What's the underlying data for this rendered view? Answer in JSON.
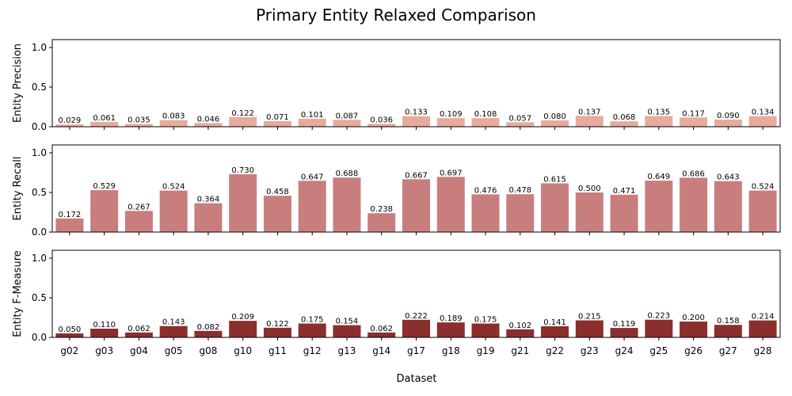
{
  "chart_data": {
    "type": "bar",
    "title": "Primary Entity Relaxed Comparison",
    "xlabel": "Dataset",
    "categories": [
      "g02",
      "g03",
      "g04",
      "g05",
      "g08",
      "g10",
      "g11",
      "g12",
      "g13",
      "g14",
      "g17",
      "g18",
      "g19",
      "g21",
      "g22",
      "g23",
      "g24",
      "g25",
      "g26",
      "g27",
      "g28"
    ],
    "ylim": [
      0,
      1.1
    ],
    "yticks": [
      "0.0",
      "0.5",
      "1.0"
    ],
    "panels": [
      {
        "ylabel": "Entity Precision",
        "color": "#e8aa9b",
        "values": [
          0.029,
          0.061,
          0.035,
          0.083,
          0.046,
          0.122,
          0.071,
          0.101,
          0.087,
          0.036,
          0.133,
          0.109,
          0.108,
          0.057,
          0.08,
          0.137,
          0.068,
          0.135,
          0.117,
          0.09,
          0.134
        ],
        "labels": [
          "0.029",
          "0.061",
          "0.035",
          "0.083",
          "0.046",
          "0.122",
          "0.071",
          "0.101",
          "0.087",
          "0.036",
          "0.133",
          "0.109",
          "0.108",
          "0.057",
          "0.080",
          "0.137",
          "0.068",
          "0.135",
          "0.117",
          "0.090",
          "0.134"
        ]
      },
      {
        "ylabel": "Entity Recall",
        "color": "#c97e7e",
        "values": [
          0.172,
          0.529,
          0.267,
          0.524,
          0.364,
          0.73,
          0.458,
          0.647,
          0.688,
          0.238,
          0.667,
          0.697,
          0.476,
          0.478,
          0.615,
          0.5,
          0.471,
          0.649,
          0.686,
          0.643,
          0.524
        ],
        "labels": [
          "0.172",
          "0.529",
          "0.267",
          "0.524",
          "0.364",
          "0.730",
          "0.458",
          "0.647",
          "0.688",
          "0.238",
          "0.667",
          "0.697",
          "0.476",
          "0.478",
          "0.615",
          "0.500",
          "0.471",
          "0.649",
          "0.686",
          "0.643",
          "0.524"
        ]
      },
      {
        "ylabel": "Entity F-Measure",
        "color": "#8b2e2e",
        "values": [
          0.05,
          0.11,
          0.062,
          0.143,
          0.082,
          0.209,
          0.122,
          0.175,
          0.154,
          0.062,
          0.222,
          0.189,
          0.175,
          0.102,
          0.141,
          0.215,
          0.119,
          0.223,
          0.2,
          0.158,
          0.214
        ],
        "labels": [
          "0.050",
          "0.110",
          "0.062",
          "0.143",
          "0.082",
          "0.209",
          "0.122",
          "0.175",
          "0.154",
          "0.062",
          "0.222",
          "0.189",
          "0.175",
          "0.102",
          "0.141",
          "0.215",
          "0.119",
          "0.223",
          "0.200",
          "0.158",
          "0.214"
        ]
      }
    ]
  }
}
